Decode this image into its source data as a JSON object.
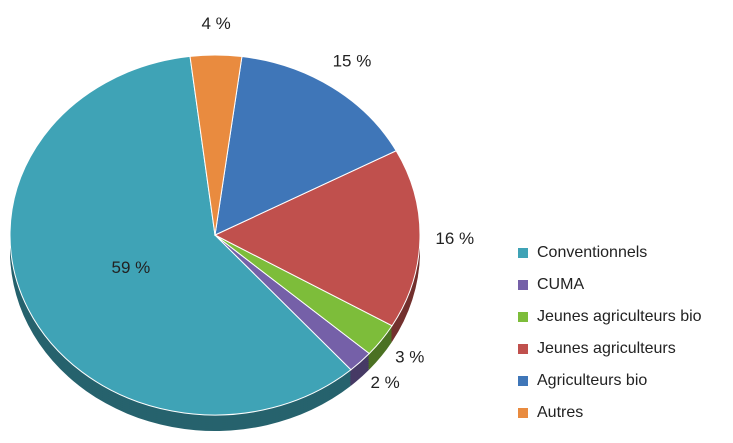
{
  "chart_data": {
    "type": "pie",
    "categories": [
      "Conventionnels",
      "CUMA",
      "Jeunes agriculteurs bio",
      "Jeunes agriculteurs",
      "Agriculteurs bio",
      "Autres"
    ],
    "values": [
      59,
      2,
      3,
      16,
      15,
      4
    ],
    "value_labels": [
      "59 %",
      "2 %",
      "3 %",
      "16 %",
      "15 %",
      "4 %"
    ],
    "colors": [
      "#3fa3b6",
      "#7560a8",
      "#7dbd3a",
      "#c0504d",
      "#3f76b8",
      "#e98b3f"
    ],
    "legend": "right"
  }
}
